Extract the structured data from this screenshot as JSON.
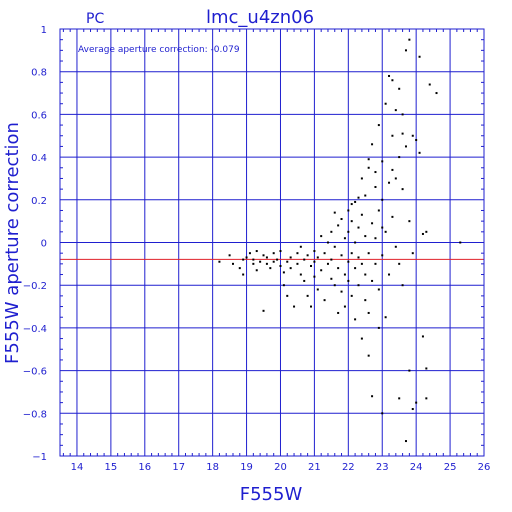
{
  "chart_data": {
    "type": "scatter",
    "corner_label": "PC",
    "title": "lmc_u4zn06",
    "annotation": "Average aperture correction: -0.079",
    "xlabel": "F555W",
    "ylabel": "F555W aperture correction",
    "xlim": [
      13.5,
      26
    ],
    "ylim": [
      -1,
      1
    ],
    "xticks": [
      14,
      15,
      16,
      17,
      18,
      19,
      20,
      21,
      22,
      23,
      24,
      25,
      26
    ],
    "yticks": [
      -1,
      -0.8,
      -0.6,
      -0.4,
      -0.2,
      0,
      0.2,
      0.4,
      0.6,
      0.8,
      1
    ],
    "xtick_labels": [
      "14",
      "15",
      "16",
      "17",
      "18",
      "19",
      "20",
      "21",
      "22",
      "23",
      "24",
      "25",
      "26"
    ],
    "ytick_labels": [
      "−1",
      "−0.8",
      "−0.6",
      "−0.4",
      "−0.2",
      "0",
      "0.2",
      "0.4",
      "0.6",
      "0.8",
      "1"
    ],
    "grid": true,
    "reference_line": -0.079,
    "colors": {
      "axes": "#1f1fcf",
      "reference_line": "#e0202a",
      "points": "#000000"
    },
    "series": [
      {
        "points": [
          [
            18.2,
            -0.09
          ],
          [
            18.5,
            -0.06
          ],
          [
            18.6,
            -0.1
          ],
          [
            18.8,
            -0.12
          ],
          [
            18.9,
            -0.08
          ],
          [
            18.9,
            -0.15
          ],
          [
            19.0,
            -0.07
          ],
          [
            19.1,
            -0.05
          ],
          [
            19.2,
            -0.1
          ],
          [
            19.2,
            -0.08
          ],
          [
            19.3,
            -0.04
          ],
          [
            19.3,
            -0.13
          ],
          [
            19.4,
            -0.09
          ],
          [
            19.5,
            -0.06
          ],
          [
            19.5,
            -0.32
          ],
          [
            19.6,
            -0.1
          ],
          [
            19.6,
            -0.07
          ],
          [
            19.7,
            -0.12
          ],
          [
            19.8,
            -0.05
          ],
          [
            19.8,
            -0.09
          ],
          [
            19.9,
            -0.08
          ],
          [
            20.0,
            -0.11
          ],
          [
            20.0,
            -0.04
          ],
          [
            20.1,
            -0.14
          ],
          [
            20.1,
            -0.2
          ],
          [
            20.2,
            -0.09
          ],
          [
            20.2,
            -0.25
          ],
          [
            20.3,
            -0.07
          ],
          [
            20.3,
            -0.12
          ],
          [
            20.4,
            -0.3
          ],
          [
            20.5,
            -0.1
          ],
          [
            20.5,
            -0.05
          ],
          [
            20.6,
            -0.15
          ],
          [
            20.6,
            -0.02
          ],
          [
            20.7,
            -0.08
          ],
          [
            20.7,
            -0.18
          ],
          [
            20.8,
            -0.25
          ],
          [
            20.8,
            -0.06
          ],
          [
            20.9,
            -0.11
          ],
          [
            20.9,
            -0.3
          ],
          [
            21.0,
            -0.09
          ],
          [
            21.0,
            -0.04
          ],
          [
            21.0,
            -0.16
          ],
          [
            21.1,
            -0.22
          ],
          [
            21.1,
            -0.07
          ],
          [
            21.2,
            0.03
          ],
          [
            21.2,
            -0.13
          ],
          [
            21.3,
            -0.05
          ],
          [
            21.3,
            -0.27
          ],
          [
            21.4,
            -0.1
          ],
          [
            21.4,
            0.0
          ],
          [
            21.5,
            -0.17
          ],
          [
            21.5,
            -0.08
          ],
          [
            21.5,
            0.05
          ],
          [
            21.6,
            -0.02
          ],
          [
            21.6,
            -0.2
          ],
          [
            21.7,
            -0.12
          ],
          [
            21.7,
            0.08
          ],
          [
            21.8,
            -0.06
          ],
          [
            21.8,
            -0.23
          ],
          [
            21.8,
            0.11
          ],
          [
            21.9,
            -0.15
          ],
          [
            21.9,
            0.02
          ],
          [
            21.9,
            -0.3
          ],
          [
            22.0,
            -0.09
          ],
          [
            22.0,
            0.05
          ],
          [
            22.0,
            -0.18
          ],
          [
            22.0,
            0.15
          ],
          [
            22.1,
            -0.25
          ],
          [
            22.1,
            -0.05
          ],
          [
            22.1,
            0.1
          ],
          [
            22.2,
            -0.12
          ],
          [
            22.2,
            0.0
          ],
          [
            22.2,
            -0.36
          ],
          [
            22.2,
            0.19
          ],
          [
            22.3,
            -0.07
          ],
          [
            22.3,
            0.07
          ],
          [
            22.3,
            -0.2
          ],
          [
            22.4,
            0.13
          ],
          [
            22.4,
            -0.1
          ],
          [
            22.4,
            0.3
          ],
          [
            22.5,
            -0.15
          ],
          [
            22.5,
            0.03
          ],
          [
            22.5,
            -0.27
          ],
          [
            22.5,
            0.22
          ],
          [
            22.6,
            -0.05
          ],
          [
            22.6,
            0.35
          ],
          [
            22.6,
            -0.33
          ],
          [
            22.7,
            0.09
          ],
          [
            22.7,
            -0.18
          ],
          [
            22.7,
            0.46
          ],
          [
            22.8,
            -0.1
          ],
          [
            22.8,
            0.26
          ],
          [
            22.8,
            0.02
          ],
          [
            22.9,
            -0.22
          ],
          [
            22.9,
            0.15
          ],
          [
            22.9,
            0.55
          ],
          [
            23.0,
            -0.06
          ],
          [
            23.0,
            0.38
          ],
          [
            23.0,
            -0.8
          ],
          [
            23.0,
            0.2
          ],
          [
            23.1,
            0.65
          ],
          [
            23.1,
            -0.35
          ],
          [
            23.1,
            0.05
          ],
          [
            23.2,
            0.28
          ],
          [
            23.2,
            0.78
          ],
          [
            23.2,
            -0.15
          ],
          [
            23.3,
            0.5
          ],
          [
            23.3,
            0.12
          ],
          [
            23.3,
            0.76
          ],
          [
            23.4,
            0.3
          ],
          [
            23.4,
            -0.02
          ],
          [
            23.4,
            0.62
          ],
          [
            23.5,
            0.72
          ],
          [
            23.5,
            0.4
          ],
          [
            23.5,
            -0.1
          ],
          [
            23.6,
            0.25
          ],
          [
            23.6,
            0.6
          ],
          [
            23.6,
            -0.2
          ],
          [
            23.7,
            0.9
          ],
          [
            23.7,
            -0.93
          ],
          [
            23.7,
            0.45
          ],
          [
            23.8,
            0.1
          ],
          [
            23.8,
            0.95
          ],
          [
            23.8,
            -0.6
          ],
          [
            23.9,
            0.5
          ],
          [
            23.9,
            -0.05
          ],
          [
            24.0,
            0.48
          ],
          [
            24.0,
            -0.75
          ],
          [
            24.1,
            0.87
          ],
          [
            24.1,
            0.42
          ],
          [
            24.2,
            0.04
          ],
          [
            24.2,
            -0.44
          ],
          [
            24.3,
            0.05
          ],
          [
            24.3,
            -0.59
          ],
          [
            24.3,
            -0.73
          ],
          [
            24.4,
            0.74
          ],
          [
            24.6,
            0.7
          ],
          [
            25.3,
            0.0
          ],
          [
            22.6,
            -0.53
          ],
          [
            22.7,
            -0.72
          ],
          [
            23.5,
            -0.73
          ],
          [
            23.9,
            -0.78
          ],
          [
            21.6,
            0.14
          ],
          [
            21.7,
            -0.33
          ],
          [
            22.3,
            0.21
          ],
          [
            22.8,
            0.33
          ],
          [
            23.0,
            0.07
          ],
          [
            23.3,
            0.34
          ],
          [
            23.6,
            0.51
          ],
          [
            22.4,
            -0.45
          ],
          [
            22.6,
            0.39
          ],
          [
            22.1,
            0.18
          ],
          [
            22.9,
            -0.4
          ]
        ]
      }
    ]
  }
}
